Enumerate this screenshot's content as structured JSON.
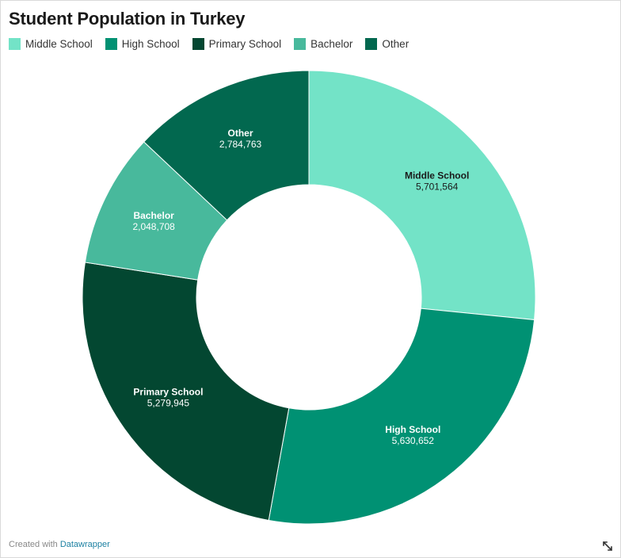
{
  "title": "Student Population in Turkey",
  "footer": {
    "prefix": "Created with ",
    "link": "Datawrapper"
  },
  "icons": {
    "resize": "expand-icon"
  },
  "chart_data": {
    "type": "pie",
    "donut": true,
    "title": "Student Population in Turkey",
    "legend_position": "top-left",
    "series": [
      {
        "name": "Middle School",
        "value": 5701564,
        "value_label": "5,701,564",
        "color": "#73e3c7",
        "label_color": "#1a1a1a"
      },
      {
        "name": "High School",
        "value": 5630652,
        "value_label": "5,630,652",
        "color": "#009173",
        "label_color": "#ffffff"
      },
      {
        "name": "Primary School",
        "value": 5279945,
        "value_label": "5,279,945",
        "color": "#034731",
        "label_color": "#ffffff"
      },
      {
        "name": "Bachelor",
        "value": 2048708,
        "value_label": "2,048,708",
        "color": "#48b99c",
        "label_color": "#ffffff"
      },
      {
        "name": "Other",
        "value": 2784763,
        "value_label": "2,784,763",
        "color": "#02684f",
        "label_color": "#ffffff"
      }
    ]
  }
}
